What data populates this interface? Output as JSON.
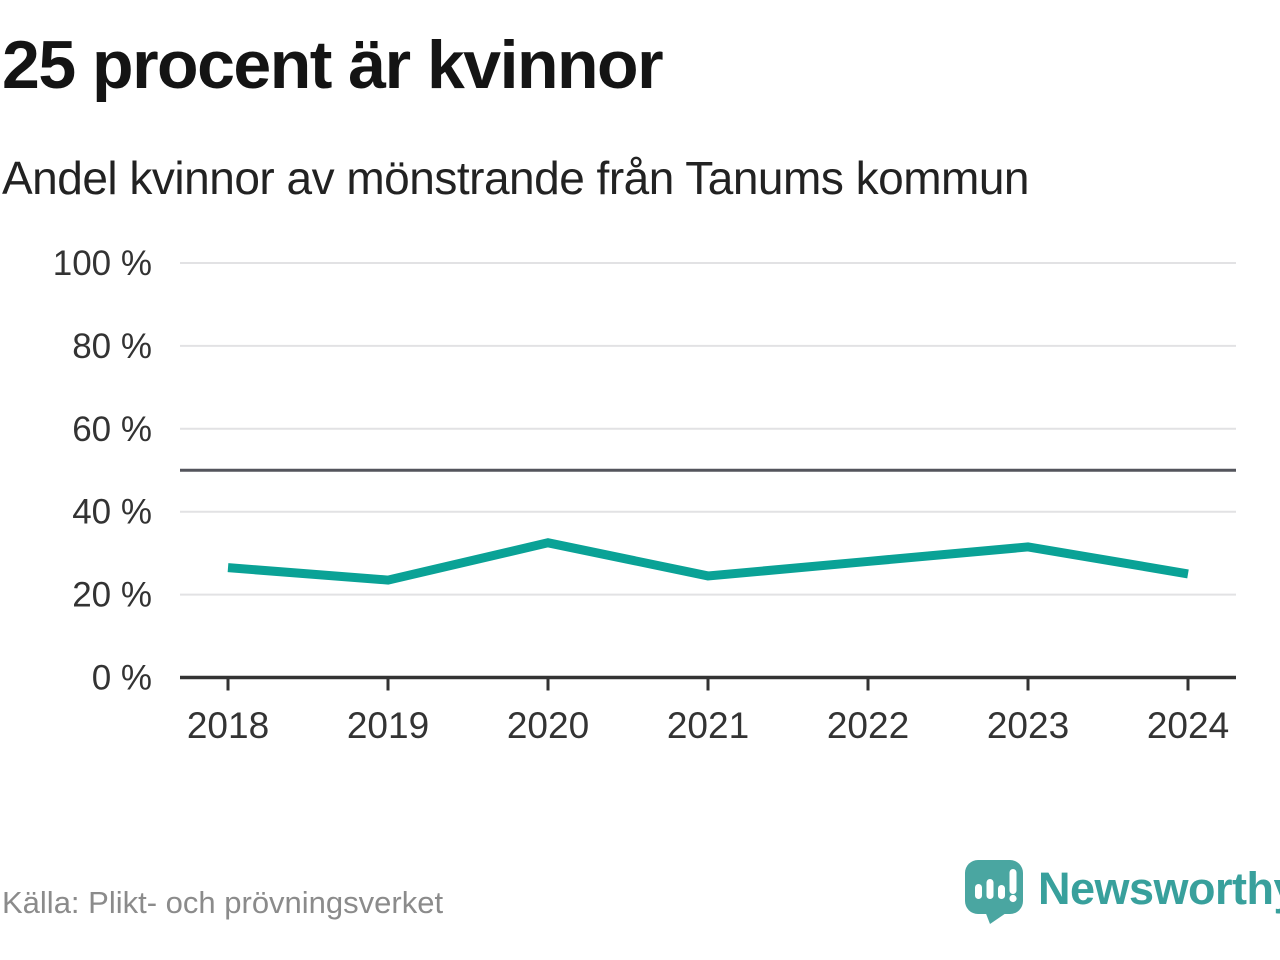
{
  "title": "25 procent är kvinnor",
  "subtitle": "Andel kvinnor av mönstrande från Tanums kommun",
  "source": "Källa: Plikt- och prövningsverket",
  "brand": {
    "name": "Newsworthy",
    "logo_icon": "speech-bubble-bar-chart-exclamation-icon"
  },
  "colors": {
    "title": "#141414",
    "subtitle": "#222222",
    "line": "#0aa296",
    "grid": "#e2e2e4",
    "reference": "#54555c",
    "axis": "#333333",
    "tick_label": "#333333",
    "source": "#8b8b8b",
    "brand_text": "#38a09c",
    "logo_bubble": "#4aa6a1",
    "logo_glyph": "#ffffff"
  },
  "chart_data": {
    "type": "line",
    "title": "25 procent är kvinnor",
    "subtitle": "Andel kvinnor av mönstrande från Tanums kommun",
    "categories": [
      "2018",
      "2019",
      "2020",
      "2021",
      "2022",
      "2023",
      "2024"
    ],
    "series": [
      {
        "name": "Andel kvinnor av mönstrande",
        "values": [
          26.5,
          23.5,
          32.5,
          24.5,
          28,
          31.5,
          25
        ]
      }
    ],
    "unit": "%",
    "xlabel": "",
    "ylabel": "",
    "ylim": [
      0,
      100
    ],
    "yticks": [
      0,
      20,
      40,
      60,
      80,
      100
    ],
    "ytick_format": "{v} %",
    "reference_line": 50,
    "grid": true,
    "legend": false
  }
}
